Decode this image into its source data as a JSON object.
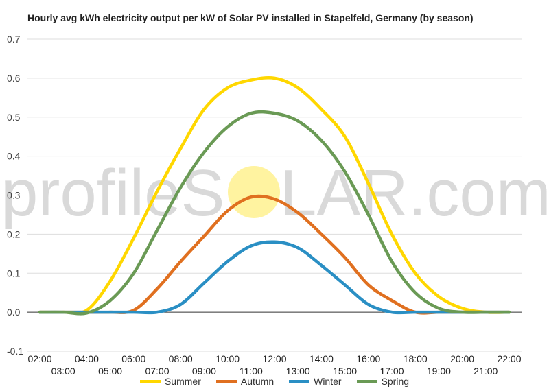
{
  "chart_data": {
    "type": "line",
    "title": "Hourly avg kWh electricity output per kW of Solar PV installed in Stapelfeld, Germany (by season)",
    "xlabel": "",
    "ylabel": "",
    "ylim": [
      -0.1,
      0.7
    ],
    "yticks": [
      "-0.1",
      "0.0",
      "0.1",
      "0.2",
      "0.3",
      "0.4",
      "0.5",
      "0.6",
      "0.7"
    ],
    "x": [
      "02:00",
      "03:00",
      "04:00",
      "05:00",
      "06:00",
      "07:00",
      "08:00",
      "09:00",
      "10:00",
      "11:00",
      "12:00",
      "13:00",
      "14:00",
      "15:00",
      "16:00",
      "17:00",
      "18:00",
      "19:00",
      "20:00",
      "21:00",
      "22:00"
    ],
    "grid": true,
    "legend_position": "bottom",
    "series": [
      {
        "name": "Summer",
        "color": "#ffd700",
        "values": [
          0,
          0,
          0.005,
          0.08,
          0.19,
          0.31,
          0.42,
          0.52,
          0.575,
          0.595,
          0.6,
          0.575,
          0.52,
          0.45,
          0.33,
          0.2,
          0.1,
          0.04,
          0.01,
          0,
          0
        ]
      },
      {
        "name": "Autumn",
        "color": "#e07020",
        "values": [
          0,
          0,
          0,
          0,
          0.005,
          0.06,
          0.13,
          0.195,
          0.26,
          0.295,
          0.29,
          0.255,
          0.2,
          0.14,
          0.07,
          0.03,
          0,
          0,
          0,
          0,
          0
        ]
      },
      {
        "name": "Winter",
        "color": "#2a8fc4",
        "values": [
          0,
          0,
          0,
          0,
          0,
          0,
          0.02,
          0.075,
          0.13,
          0.17,
          0.18,
          0.165,
          0.12,
          0.07,
          0.02,
          0,
          0,
          0,
          0,
          0,
          0
        ]
      },
      {
        "name": "Spring",
        "color": "#6a9a55",
        "values": [
          0,
          0,
          -0.002,
          0.03,
          0.1,
          0.21,
          0.32,
          0.41,
          0.475,
          0.51,
          0.51,
          0.49,
          0.44,
          0.36,
          0.25,
          0.13,
          0.05,
          0.01,
          0,
          0,
          0
        ]
      }
    ]
  },
  "watermark": {
    "left_text": "profileS",
    "right_text": "LAR.com",
    "sun_color": "#fff3a0"
  }
}
